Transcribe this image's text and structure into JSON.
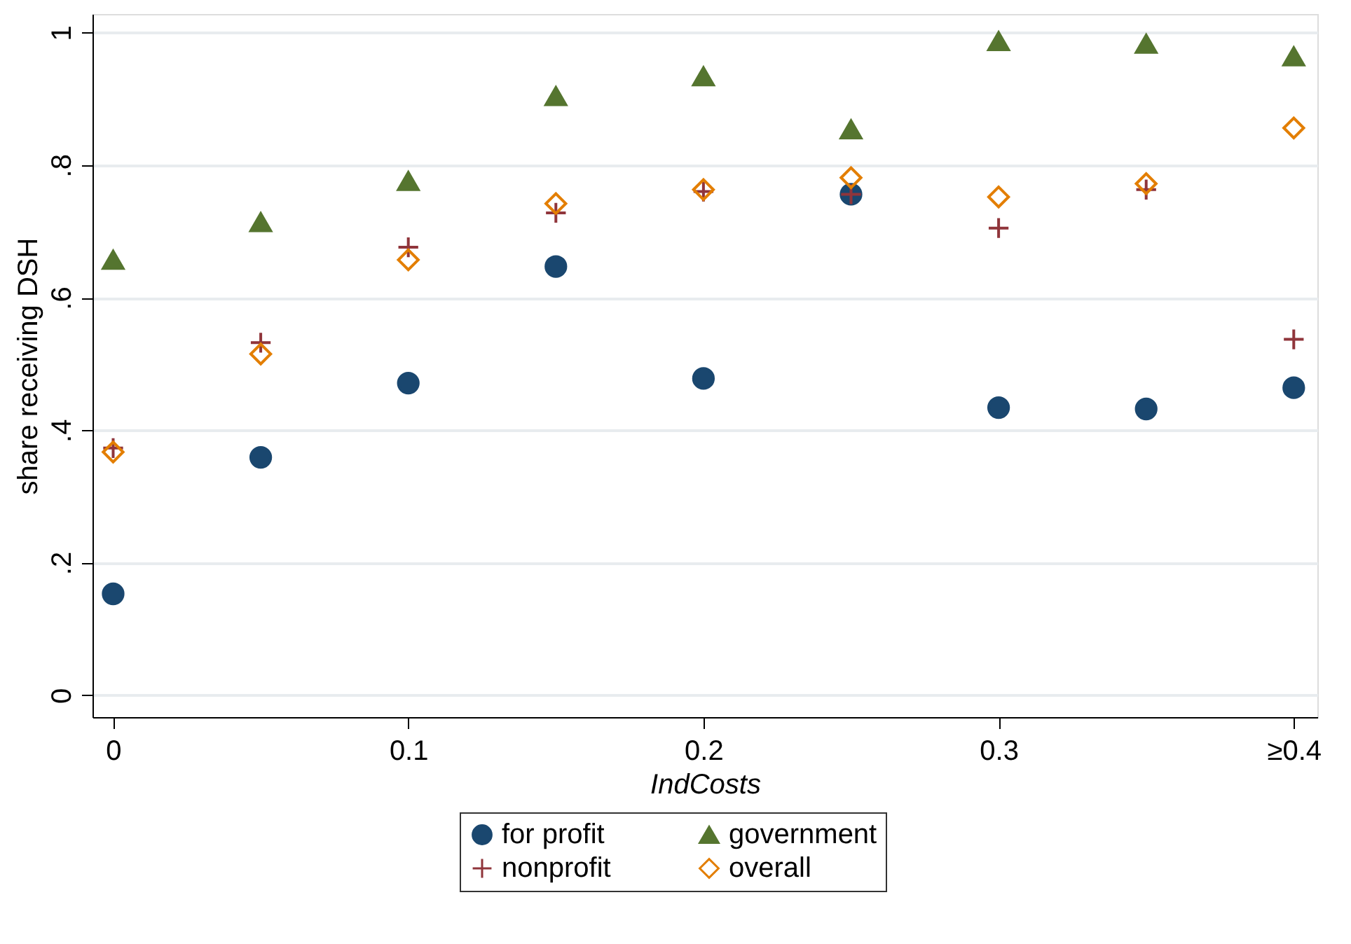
{
  "chart_data": {
    "type": "scatter",
    "xlabel": "IndCosts",
    "ylabel": "share receiving DSH",
    "x": [
      0,
      0.05,
      0.1,
      0.15,
      0.2,
      0.25,
      0.3,
      0.35,
      0.4
    ],
    "series": [
      {
        "name": "for profit",
        "color": "#1a476f",
        "marker": "circle",
        "values": [
          0.153,
          0.359,
          0.471,
          0.647,
          0.478,
          0.756,
          0.434,
          0.432,
          0.464
        ]
      },
      {
        "name": "nonprofit",
        "color": "#90353b",
        "marker": "cross",
        "values": [
          0.373,
          0.532,
          0.676,
          0.728,
          0.76,
          0.756,
          0.705,
          0.763,
          0.537
        ]
      },
      {
        "name": "government",
        "color": "#55752f",
        "marker": "triangle",
        "values": [
          0.657,
          0.714,
          0.776,
          0.904,
          0.934,
          0.854,
          0.987,
          0.983,
          0.964
        ]
      },
      {
        "name": "overall",
        "color": "#e37e00",
        "marker": "diamond",
        "values": [
          0.367,
          0.515,
          0.657,
          0.742,
          0.763,
          0.781,
          0.752,
          0.772,
          0.856
        ]
      }
    ],
    "xlim": [
      -0.007,
      0.408
    ],
    "ylim": [
      -0.033,
      1.028
    ],
    "xticks": [
      0,
      0.1,
      0.2,
      0.3,
      {
        "value": 0.4,
        "label": "≥0.4"
      }
    ],
    "yticks": [
      0,
      {
        "value": 0.2,
        "label": ".2"
      },
      {
        "value": 0.4,
        "label": ".4"
      },
      {
        "value": 0.6,
        "label": ".6"
      },
      {
        "value": 0.8,
        "label": ".8"
      },
      1
    ],
    "grid": "y",
    "legend": "bottom"
  }
}
